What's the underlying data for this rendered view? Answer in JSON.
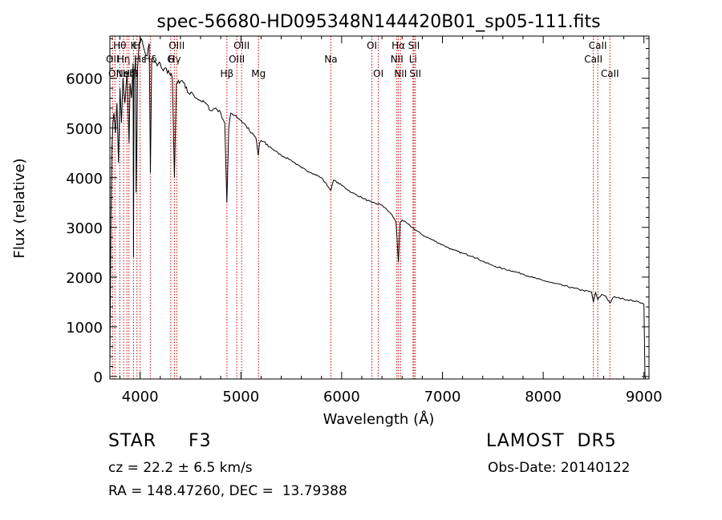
{
  "chart_data": {
    "type": "line",
    "title": "spec-56680-HD095348N144420B01_sp05-111.fits",
    "xlabel": "Wavelength (Å)",
    "ylabel": "Flux (relative)",
    "xlim": [
      3700,
      9050
    ],
    "ylim": [
      -50,
      6850
    ],
    "xticks": [
      4000,
      5000,
      6000,
      7000,
      8000,
      9000
    ],
    "yticks": [
      0,
      1000,
      2000,
      3000,
      4000,
      5000,
      6000
    ],
    "grid": false,
    "series": [
      {
        "x": [
          3700,
          3710,
          3720,
          3730,
          3740,
          3755,
          3770,
          3785,
          3800,
          3815,
          3830,
          3850,
          3870,
          3890,
          3900,
          3915,
          3930,
          3934,
          3940,
          3955,
          3960,
          3968,
          3975,
          3990,
          4010,
          4030,
          4050,
          4070,
          4090,
          4102,
          4115,
          4140,
          4170,
          4200,
          4230,
          4260,
          4290,
          4320,
          4340,
          4360,
          4390,
          4420,
          4450,
          4480,
          4520,
          4560,
          4600,
          4650,
          4700,
          4750,
          4800,
          4840,
          4861,
          4880,
          4900,
          4950,
          5000,
          5050,
          5100,
          5150,
          5172,
          5185,
          5200,
          5300,
          5400,
          5500,
          5600,
          5700,
          5800,
          5893,
          5920,
          6000,
          6100,
          6200,
          6300,
          6400,
          6500,
          6540,
          6563,
          6580,
          6600,
          6700,
          6800,
          6900,
          7000,
          7100,
          7200,
          7300,
          7400,
          7500,
          7600,
          7700,
          7800,
          7900,
          8000,
          8100,
          8200,
          8300,
          8400,
          8480,
          8498,
          8520,
          8542,
          8580,
          8620,
          8662,
          8700,
          8800,
          8900,
          8950,
          8980,
          9000,
          9010,
          9020
        ],
        "y": [
          200,
          3200,
          4600,
          5100,
          5300,
          4900,
          5500,
          4300,
          5800,
          5100,
          6000,
          5500,
          6100,
          4700,
          5900,
          5600,
          6300,
          2400,
          6000,
          6400,
          3700,
          4800,
          6200,
          6700,
          6800,
          6650,
          6500,
          6450,
          6700,
          4100,
          6400,
          6350,
          6250,
          6300,
          6150,
          6200,
          6100,
          6000,
          4000,
          5900,
          5900,
          5950,
          5800,
          5700,
          5700,
          5600,
          5550,
          5500,
          5350,
          5400,
          5300,
          5100,
          3500,
          5000,
          5300,
          5250,
          5150,
          5050,
          4900,
          4800,
          4450,
          4700,
          4750,
          4600,
          4450,
          4350,
          4200,
          4100,
          4000,
          3750,
          3950,
          3850,
          3700,
          3600,
          3500,
          3450,
          3250,
          3100,
          2300,
          3100,
          3150,
          3000,
          2850,
          2750,
          2650,
          2550,
          2480,
          2420,
          2320,
          2230,
          2170,
          2120,
          2060,
          1990,
          1930,
          1880,
          1830,
          1780,
          1730,
          1700,
          1500,
          1690,
          1550,
          1650,
          1620,
          1480,
          1600,
          1560,
          1520,
          1500,
          1480,
          1450,
          0,
          -50
        ]
      }
    ],
    "lines": [
      {
        "wl": 3726,
        "label": "OII",
        "row": 2
      },
      {
        "wl": 3750,
        "label": "OII",
        "row": 3
      },
      {
        "wl": 3798,
        "label": "Hθ",
        "row": 1
      },
      {
        "wl": 3836,
        "label": "Hη",
        "row": 2
      },
      {
        "wl": 3869,
        "label": "NeIII",
        "row": 3
      },
      {
        "wl": 3889,
        "label": "Hζ",
        "row": 3
      },
      {
        "wl": 3934,
        "label": "K",
        "row": 1
      },
      {
        "wl": 3969,
        "label": "H",
        "row": 1
      },
      {
        "wl": 4000,
        "label": "Hε",
        "row": 2
      },
      {
        "wl": 4101,
        "label": "Hδ",
        "row": 2
      },
      {
        "wl": 4304,
        "label": "G",
        "row": 2
      },
      {
        "wl": 4340,
        "label": "Hγ",
        "row": 2
      },
      {
        "wl": 4363,
        "label": "OIII",
        "row": 1
      },
      {
        "wl": 4861,
        "label": "Hβ",
        "row": 3
      },
      {
        "wl": 4959,
        "label": "OIII",
        "row": 2
      },
      {
        "wl": 5007,
        "label": "OIII",
        "row": 1
      },
      {
        "wl": 5175,
        "label": "Mg",
        "row": 3
      },
      {
        "wl": 5893,
        "label": "Na",
        "row": 2
      },
      {
        "wl": 6300,
        "label": "OI",
        "row": 1
      },
      {
        "wl": 6364,
        "label": "OI",
        "row": 3
      },
      {
        "wl": 6548,
        "label": "NII",
        "row": 2
      },
      {
        "wl": 6563,
        "label": "Hα",
        "row": 1
      },
      {
        "wl": 6584,
        "label": "NII",
        "row": 3
      },
      {
        "wl": 6708,
        "label": "Li",
        "row": 2
      },
      {
        "wl": 6717,
        "label": "SII",
        "row": 1
      },
      {
        "wl": 6731,
        "label": "SII",
        "row": 3
      },
      {
        "wl": 8498,
        "label": "CaII",
        "row": 2
      },
      {
        "wl": 8542,
        "label": "CaII",
        "row": 1
      },
      {
        "wl": 8662,
        "label": "CaII",
        "row": 3
      }
    ]
  },
  "footer": {
    "star_type": "STAR     F3",
    "survey": "LAMOST  DR5",
    "cz": "cz = 22.2 ± 6.5 km/s",
    "obs_date": "Obs-Date: 20140122",
    "radec": "RA = 148.47260, DEC =  13.79388"
  },
  "colors": {
    "spectrum": "#000000",
    "line_markers": "#cc0000",
    "axes": "#000000"
  }
}
